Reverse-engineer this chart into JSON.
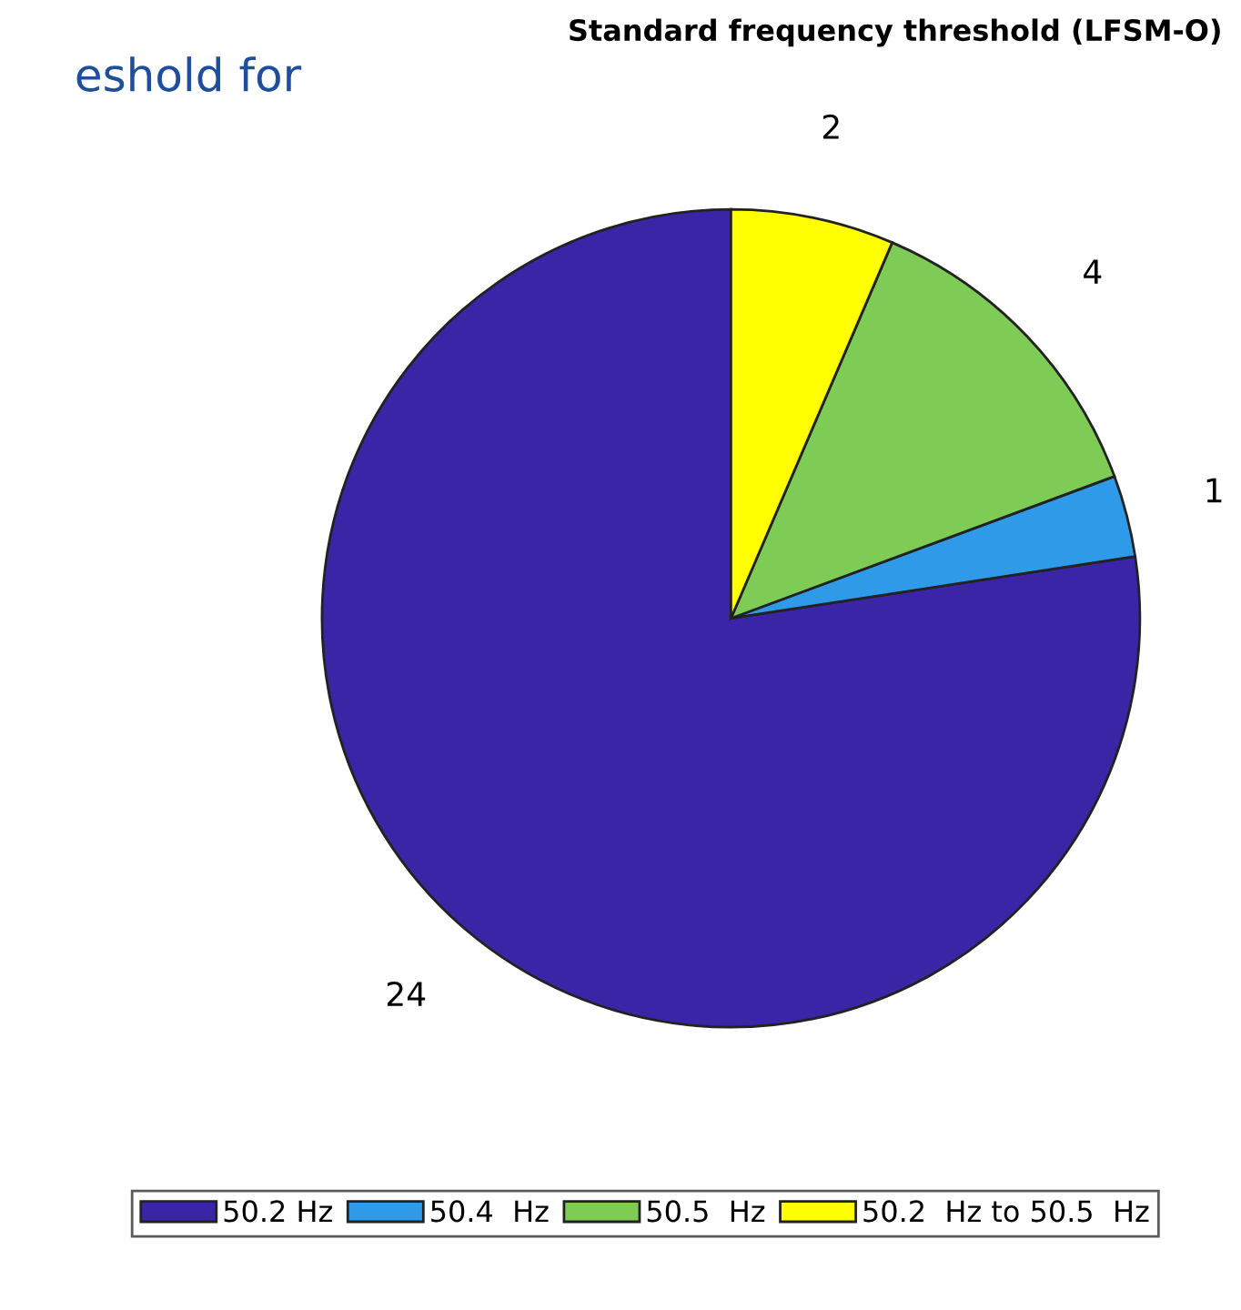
{
  "chart_data": {
    "type": "pie",
    "title": "Standard frequency threshold (LFSM-O)",
    "categories": [
      "50.2 Hz",
      "50.4  Hz",
      "50.5  Hz",
      "50.2  Hz to 50.5  Hz"
    ],
    "values": [
      24,
      1,
      4,
      2
    ],
    "colors": [
      "#3a25a6",
      "#2f9be8",
      "#7ecb56",
      "#ffff00"
    ],
    "data_labels": true,
    "legend": "bottom",
    "annotations": [
      "eshold for"
    ]
  }
}
